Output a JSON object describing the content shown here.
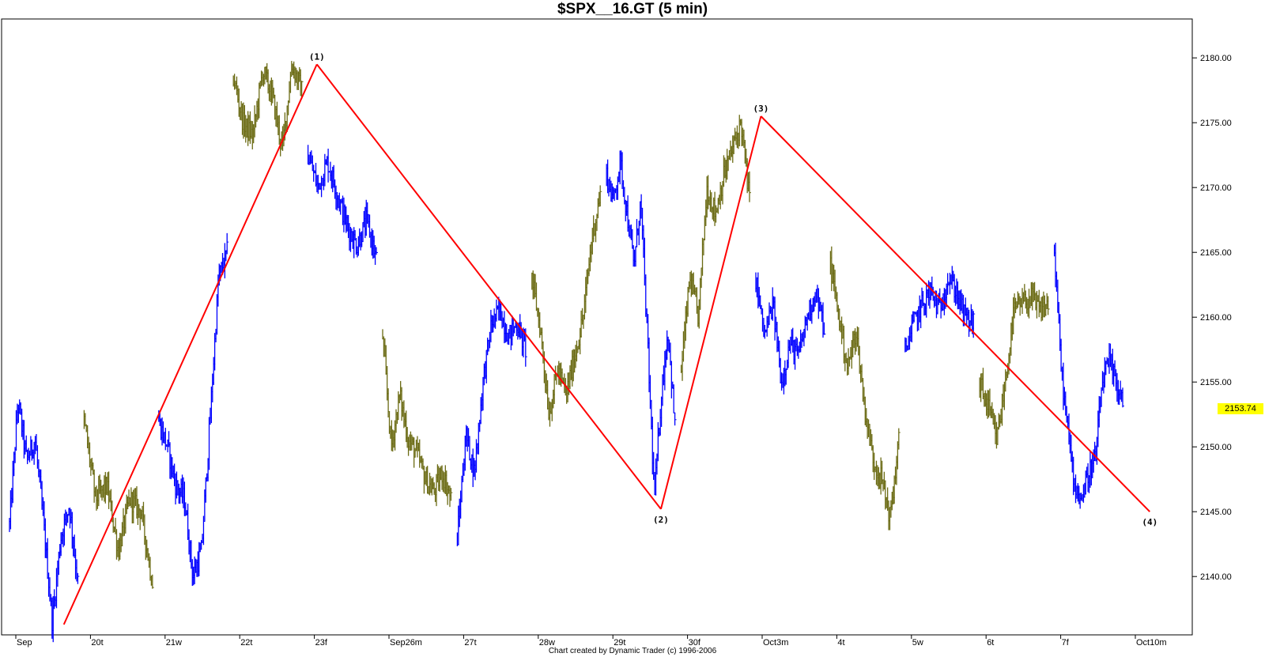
{
  "chart_data": {
    "type": "bar",
    "title": "$SPX__16.GT (5 min)",
    "credit": "Chart created by Dynamic Trader  (c) 1996-2006",
    "ylim": [
      2135.5,
      2183.0
    ],
    "y_ticks": [
      2140,
      2145,
      2150,
      2155,
      2160,
      2165,
      2170,
      2175,
      2180
    ],
    "y_tick_labels": [
      "2140.00",
      "2145.00",
      "2150.00",
      "2155.00",
      "2160.00",
      "2165.00",
      "2170.00",
      "2175.00",
      "2180.00"
    ],
    "last_price": "2153.74",
    "last_price_value": 2153.74,
    "x_ticks": [
      {
        "label": "Sep",
        "session": 0
      },
      {
        "label": "20t",
        "session": 1
      },
      {
        "label": "21w",
        "session": 2
      },
      {
        "label": "22t",
        "session": 3
      },
      {
        "label": "23f",
        "session": 4
      },
      {
        "label": "Sep26m",
        "session": 5
      },
      {
        "label": "27t",
        "session": 6
      },
      {
        "label": "28w",
        "session": 7
      },
      {
        "label": "29t",
        "session": 8
      },
      {
        "label": "30f",
        "session": 9
      },
      {
        "label": "Oct3m",
        "session": 10
      },
      {
        "label": "4t",
        "session": 11
      },
      {
        "label": "5w",
        "session": 12
      },
      {
        "label": "6t",
        "session": 13
      },
      {
        "label": "7f",
        "session": 14
      },
      {
        "label": "Oct10m",
        "session": 15
      }
    ],
    "series_colors": [
      "#0000ff",
      "#6b6b14"
    ],
    "wave_color": "#ff0000",
    "sessions": [
      {
        "session": 0,
        "color": "blue",
        "path": [
          2144,
          2153.5,
          2149,
          2150.5,
          2144,
          2136.5,
          2143,
          2145.5,
          2139.5
        ]
      },
      {
        "session": 1,
        "color": "olive",
        "path": [
          2152,
          2146,
          2147,
          2142,
          2146,
          2145,
          2139.5
        ]
      },
      {
        "session": 2,
        "color": "blue",
        "path": [
          2152,
          2150,
          2147,
          2146,
          2140,
          2142,
          2152,
          2163,
          2165
        ]
      },
      {
        "session": 3,
        "color": "olive",
        "path": [
          2178.5,
          2175,
          2174,
          2179,
          2177,
          2173,
          2179.5,
          2177.5
        ]
      },
      {
        "session": 4,
        "color": "blue",
        "path": [
          2172.5,
          2170,
          2172,
          2169.5,
          2167,
          2165.5,
          2167.5,
          2164.5
        ]
      },
      {
        "session": 5,
        "color": "olive",
        "path": [
          2158.5,
          2150,
          2154,
          2150.5,
          2149.5,
          2147.5,
          2146.5,
          2148,
          2146
        ]
      },
      {
        "session": 6,
        "color": "blue",
        "path": [
          2143,
          2151,
          2148,
          2155,
          2159.5,
          2160.5,
          2158.5,
          2159.5,
          2157.5
        ]
      },
      {
        "session": 7,
        "color": "olive",
        "path": [
          2163,
          2159,
          2152.5,
          2156,
          2154,
          2157,
          2160,
          2166,
          2169.5
        ]
      },
      {
        "session": 8,
        "color": "blue",
        "path": [
          2171,
          2169,
          2172,
          2168,
          2164,
          2169,
          2158,
          2146,
          2154,
          2159,
          2151.5
        ]
      },
      {
        "session": 9,
        "color": "olive",
        "path": [
          2156,
          2163,
          2160,
          2170,
          2168,
          2171,
          2173,
          2175,
          2169
        ]
      },
      {
        "session": 10,
        "color": "blue",
        "path": [
          2163,
          2158.5,
          2161,
          2155,
          2158,
          2157,
          2160,
          2162,
          2159
        ]
      },
      {
        "session": 11,
        "color": "olive",
        "path": [
          2164,
          2160,
          2156,
          2159,
          2153,
          2149,
          2147.5,
          2144.5,
          2150.5
        ]
      },
      {
        "session": 12,
        "color": "blue",
        "path": [
          2157.5,
          2159.5,
          2161,
          2162,
          2160.5,
          2163,
          2162,
          2160,
          2159.5
        ]
      },
      {
        "session": 13,
        "color": "olive",
        "path": [
          2155,
          2153,
          2150.5,
          2155,
          2160.5,
          2161,
          2161.5,
          2160.5,
          2161
        ]
      },
      {
        "session": 14,
        "color": "blue",
        "path": [
          2165,
          2156,
          2151,
          2147,
          2146,
          2148,
          2149,
          2155,
          2156.5,
          2155,
          2153.74
        ]
      }
    ],
    "wave_points": [
      {
        "label": "",
        "session": 0.58,
        "value": 2136.3
      },
      {
        "label": "(1)",
        "session": 3.97,
        "value": 2179.5
      },
      {
        "label": "(2)",
        "session": 8.58,
        "value": 2145.2
      },
      {
        "label": "(3)",
        "session": 9.92,
        "value": 2175.5
      },
      {
        "label": "(4)",
        "session": 15.13,
        "value": 2145.0
      }
    ]
  }
}
